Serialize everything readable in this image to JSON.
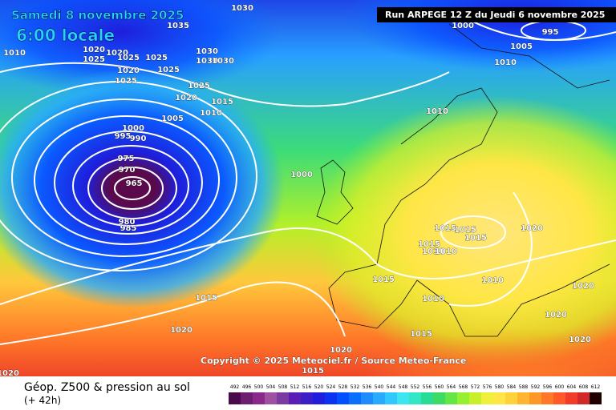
{
  "header": {
    "date": "Samedi 8 novembre 2025",
    "time": "6:00 locale",
    "run": "Run ARPEGE 12 Z du Jeudi 6 novembre 2025"
  },
  "copyright": "Copyright © 2025 Meteociel.fr / Source Meteo-France",
  "footer": {
    "title": "Géop. Z500 & pression au sol",
    "lead": "(+ 42h)"
  },
  "isobar_labels": [
    1030,
    1035,
    1010,
    1020,
    1025,
    1020,
    1025,
    1025,
    1030,
    1030,
    1030,
    1020,
    1025,
    1025,
    1025,
    1020,
    1015,
    1010,
    1005,
    1000,
    995,
    990,
    975,
    970,
    965,
    980,
    985,
    1000,
    1010,
    1010,
    1005,
    995,
    1000,
    1015,
    1015,
    1015,
    1015,
    1010,
    1010,
    1020,
    1015,
    1010,
    1010,
    1020,
    1020,
    1020,
    1015,
    1020,
    1015,
    1020,
    1015,
    1020
  ],
  "scale": {
    "labels": [
      492,
      496,
      500,
      504,
      508,
      512,
      516,
      520,
      524,
      528,
      532,
      536,
      540,
      544,
      548,
      552,
      556,
      560,
      564,
      568,
      572,
      576,
      580,
      584,
      588,
      592,
      596,
      600,
      604,
      608,
      612
    ],
    "colors": [
      "#4b0a4b",
      "#6e1e6e",
      "#8c288c",
      "#a050a0",
      "#7a3ca0",
      "#5a1eb4",
      "#3c1ec8",
      "#1e1edc",
      "#0a32f0",
      "#0050ff",
      "#0a6eff",
      "#1e8cff",
      "#28aaff",
      "#32c8ff",
      "#3ce6f0",
      "#32e6c8",
      "#28dc96",
      "#3cdc64",
      "#64e646",
      "#96f032",
      "#c8f028",
      "#f0f03c",
      "#ffe646",
      "#ffd23c",
      "#ffb432",
      "#ff9628",
      "#ff7828",
      "#ff5a28",
      "#f03c28",
      "#d22828",
      "#200000"
    ]
  }
}
